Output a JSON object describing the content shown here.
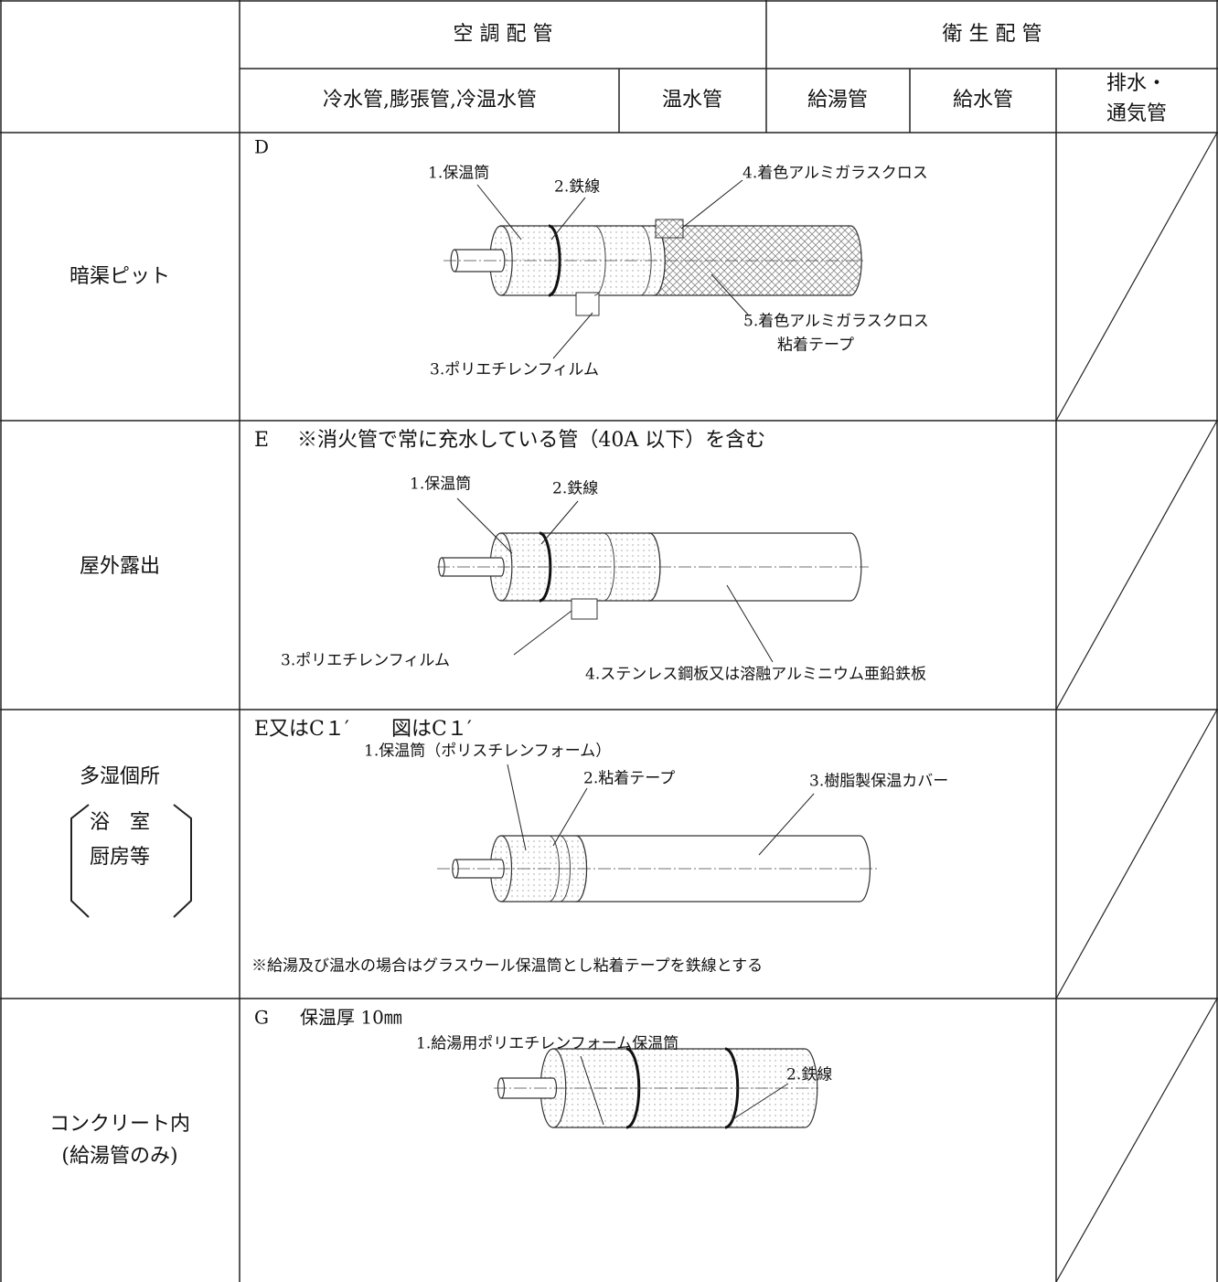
{
  "header": {
    "groups": [
      "空 調 配 管",
      "衛 生 配 管"
    ],
    "columns": [
      "冷水管,膨張管,冷温水管",
      "温水管",
      "給湯管",
      "給水管"
    ],
    "drain_column": [
      "排水・",
      "通気管"
    ]
  },
  "rows": [
    {
      "label": [
        "暗渠ピット"
      ],
      "code": "D",
      "parts": [
        "1.保温筒",
        "2.鉄線",
        "4.着色アルミガラスクロス",
        "5.着色アルミガラスクロス",
        "粘着テープ",
        "3.ポリエチレンフィルム"
      ]
    },
    {
      "label": [
        "屋外露出"
      ],
      "code": "E",
      "remark": "※消火管で常に充水している管（40A 以下）を含む",
      "parts": [
        "1.保温筒",
        "2.鉄線",
        "3.ポリエチレンフィルム",
        "4.ステンレス鋼板又は溶融アルミニウム亜鉛鉄板"
      ]
    },
    {
      "label": [
        "多湿個所"
      ],
      "sublabel": [
        "浴　室",
        "厨房等"
      ],
      "code": "E又はC１′",
      "remark": "図はC１′",
      "parts": [
        "1.保温筒（ポリスチレンフォーム）",
        "2.粘着テープ",
        "3.樹脂製保温カバー"
      ],
      "note": "※給湯及び温水の場合はグラスウール保温筒とし粘着テープを鉄線とする"
    },
    {
      "label": [
        "コンクリート内",
        "(給湯管のみ)"
      ],
      "code": "G",
      "remark": "保温厚 10㎜",
      "parts": [
        "1.給湯用ポリエチレンフォーム保温筒",
        "2.鉄線"
      ]
    }
  ]
}
